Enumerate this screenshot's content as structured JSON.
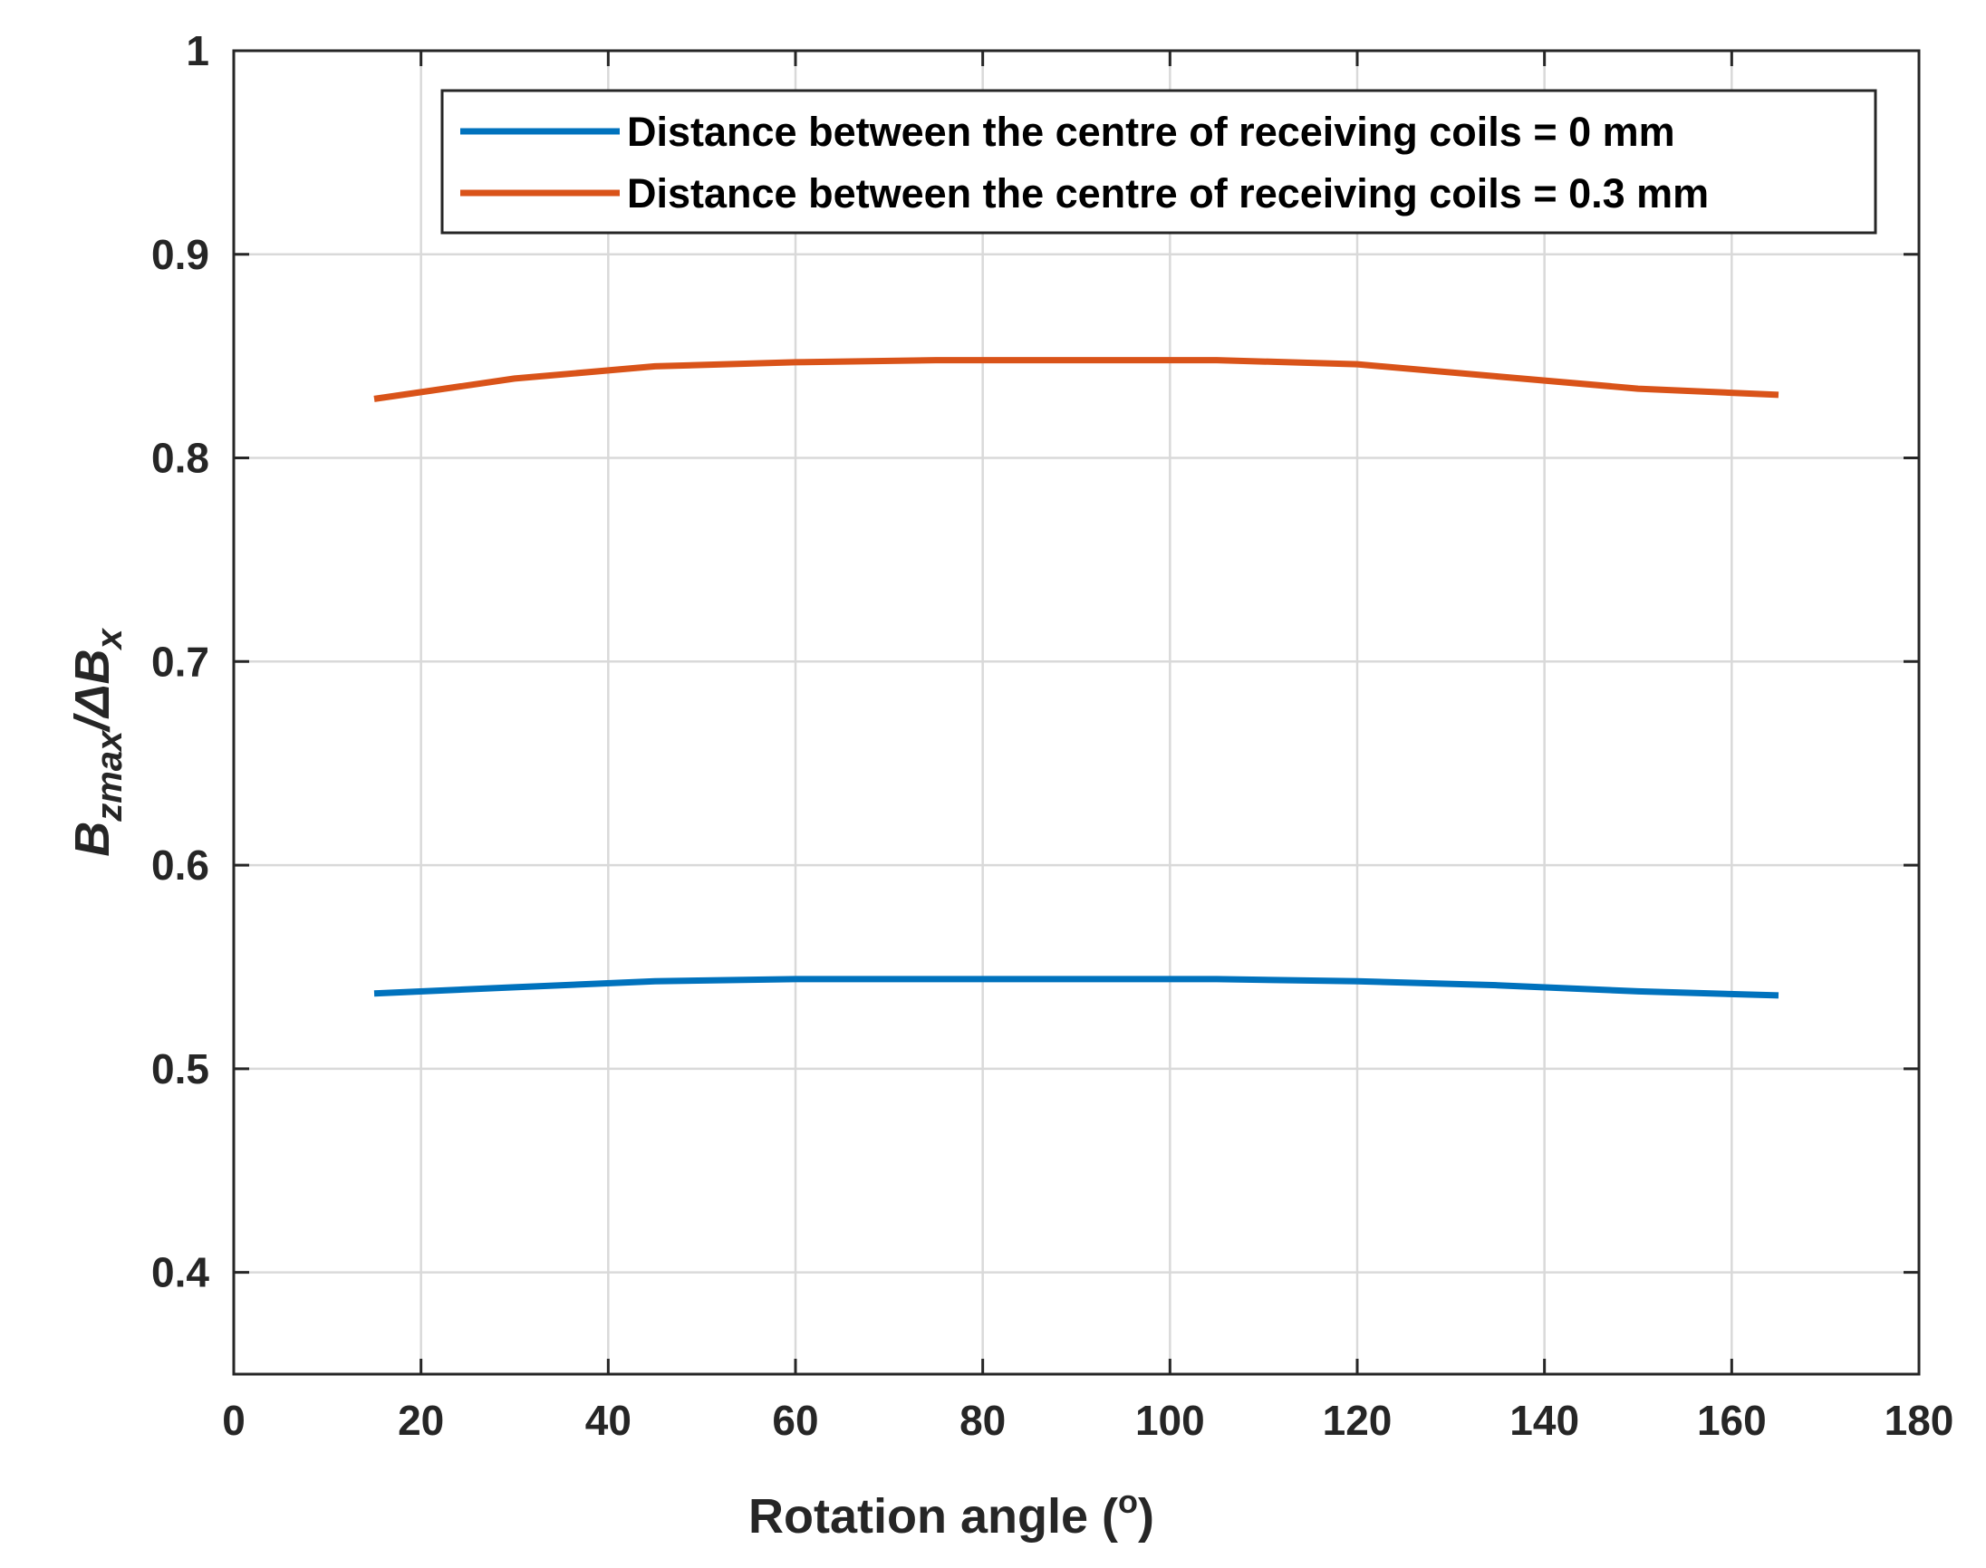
{
  "chart_data": {
    "type": "line",
    "title": "",
    "xlabel": "Rotation angle (°)",
    "xlabel_parts": {
      "main": "Rotation angle (",
      "sup": "o",
      "close": ")"
    },
    "ylabel_parts": {
      "b1": "B",
      "sub1": "zmax",
      "slash": "/ΔB",
      "sub2": "x"
    },
    "xlim": [
      0,
      180
    ],
    "ylim": [
      0.35,
      1
    ],
    "xticks": [
      0,
      20,
      40,
      60,
      80,
      100,
      120,
      140,
      160,
      180
    ],
    "xtick_labels": [
      "0",
      "20",
      "40",
      "60",
      "80",
      "100",
      "120",
      "140",
      "160",
      "180"
    ],
    "yticks": [
      0.4,
      0.5,
      0.6,
      0.7,
      0.8,
      0.9,
      1.0
    ],
    "ytick_labels": [
      "0.4",
      "0.5",
      "0.6",
      "0.7",
      "0.8",
      "0.9",
      "1"
    ],
    "grid": true,
    "legend_position": "top-right",
    "x": [
      15,
      30,
      45,
      60,
      75,
      90,
      105,
      120,
      135,
      150,
      165
    ],
    "series": [
      {
        "name": "Distance between the centre of receiving coils = 0 mm",
        "color": "#0072BD",
        "values": [
          0.537,
          0.54,
          0.543,
          0.544,
          0.544,
          0.544,
          0.544,
          0.543,
          0.541,
          0.538,
          0.536
        ]
      },
      {
        "name": "Distance between the centre of receiving coils = 0.3 mm",
        "color": "#D95319",
        "values": [
          0.829,
          0.839,
          0.845,
          0.847,
          0.848,
          0.848,
          0.848,
          0.846,
          0.84,
          0.834,
          0.831
        ]
      }
    ]
  }
}
